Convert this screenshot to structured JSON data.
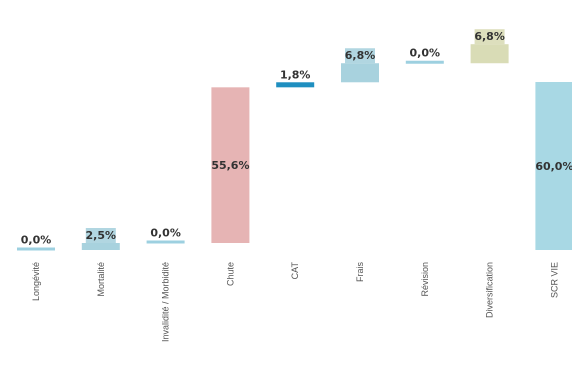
{
  "chart_data": {
    "type": "waterfall",
    "categories": [
      "Longévité",
      "Mortalité",
      "Invalidité / Morbidité",
      "Chute",
      "CAT",
      "Frais",
      "Révision",
      "Diversification",
      "SCR VIE"
    ],
    "values": [
      0.0,
      2.5,
      0.0,
      55.6,
      1.8,
      6.8,
      0.0,
      6.8,
      60.0
    ],
    "labels": [
      "0,0%",
      "2,5%",
      "0,0%",
      "55,6%",
      "1,8%",
      "6,8%",
      "0,0%",
      "6,8%",
      "60,0%"
    ],
    "label_style": [
      "plain",
      "boxed",
      "plain",
      "inside",
      "boxed",
      "boxed",
      "plain",
      "boxed",
      "inside"
    ],
    "colors": [
      "#9dd0e0",
      "#a8d2de",
      "#9dd0e0",
      "#e6b4b4",
      "#1f8fc0",
      "#a8d2de",
      "#9dd0e0",
      "#d9dcb6",
      "#a8d8e4"
    ],
    "ylim": [
      0,
      66
    ],
    "legend": "none",
    "grid": false
  }
}
